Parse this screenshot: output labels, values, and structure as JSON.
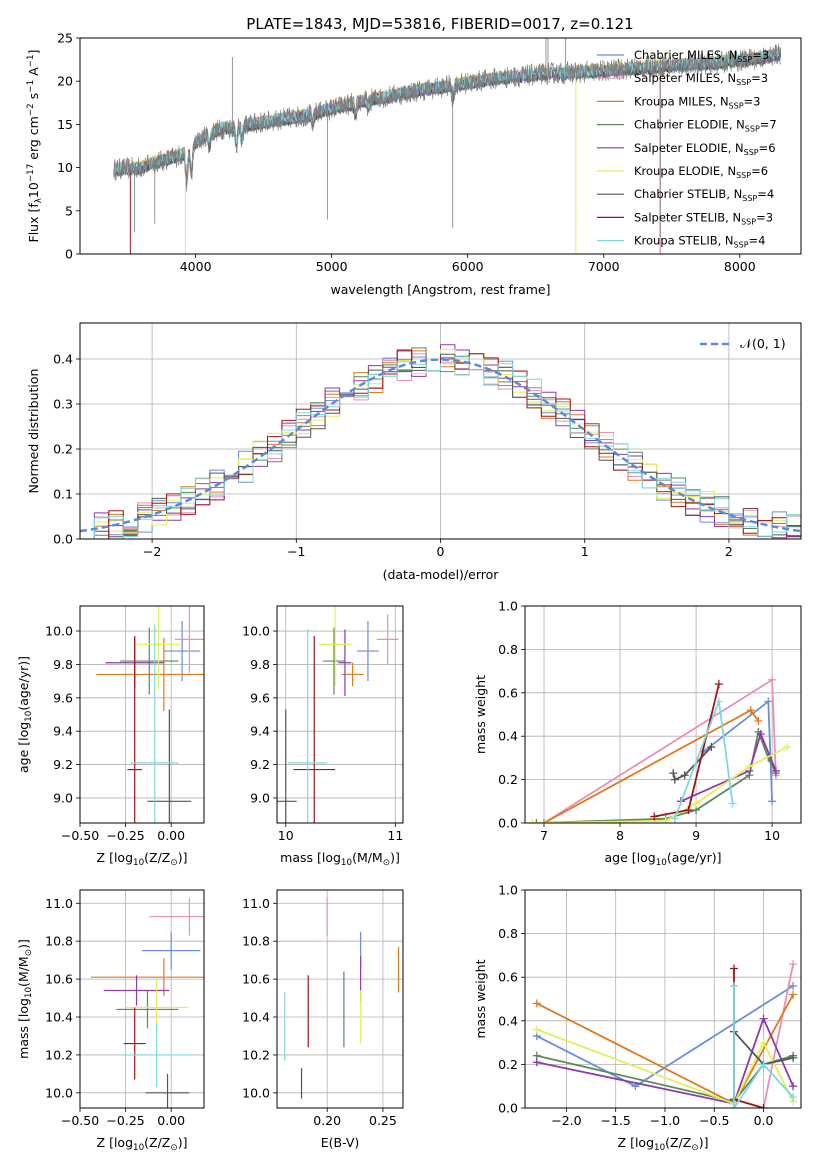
{
  "figure": {
    "title": "PLATE=1843, MJD=53816, FIBERID=0017, z=0.121"
  },
  "models": [
    {
      "label": "Chabrier MILES, N$_{SSP}$=3",
      "label_text": "Chabrier MILES, N",
      "label_sub": "SSP",
      "label_tail": "=3",
      "color": "#6a8fd6"
    },
    {
      "label": "Salpeter MILES, N$_{SSP}$=3",
      "label_text": "Salpeter MILES, N",
      "label_sub": "SSP",
      "label_tail": "=3",
      "color": "#e98fb9"
    },
    {
      "label": "Kroupa MILES, N$_{SSP}$=3",
      "label_text": "Kroupa MILES, N",
      "label_sub": "SSP",
      "label_tail": "=3",
      "color": "#e07a1f"
    },
    {
      "label": "Chabrier ELODIE, N$_{SSP}$=7",
      "label_text": "Chabrier ELODIE, N",
      "label_sub": "SSP",
      "label_tail": "=7",
      "color": "#5a8a5a"
    },
    {
      "label": "Salpeter ELODIE, N$_{SSP}$=6",
      "label_text": "Salpeter ELODIE, N",
      "label_sub": "SSP",
      "label_tail": "=6",
      "color": "#8e3aa8"
    },
    {
      "label": "Kroupa ELODIE, N$_{SSP}$=6",
      "label_text": "Kroupa ELODIE, N",
      "label_sub": "SSP",
      "label_tail": "=6",
      "color": "#e3ee5a"
    },
    {
      "label": "Chabrier STELIB, N$_{SSP}$=4",
      "label_text": "Chabrier STELIB, N",
      "label_sub": "SSP",
      "label_tail": "=4",
      "color": "#555555"
    },
    {
      "label": "Salpeter STELIB, N$_{SSP}$=3",
      "label_text": "Salpeter STELIB, N",
      "label_sub": "SSP",
      "label_tail": "=3",
      "color": "#a01515"
    },
    {
      "label": "Kroupa STELIB, N$_{SSP}$=4",
      "label_text": "Kroupa STELIB, N",
      "label_sub": "SSP",
      "label_tail": "=4",
      "color": "#7fd8e0"
    }
  ],
  "chart_data": [
    {
      "id": "spectrum",
      "type": "line",
      "xlabel": "wavelength [Angstrom, rest frame]",
      "ylabel": "Flux [f$_\\lambda$10$^{-17}$ erg cm$^{-2}$ s$^{-1}$ A$^{-1}$]",
      "ylabel_parts": [
        "Flux [f",
        "λ",
        "10",
        "−17",
        " erg cm",
        "−2",
        " s",
        "−1",
        " A",
        "−1",
        "]"
      ],
      "xlim": [
        3150,
        8450
      ],
      "ylim": [
        0,
        25
      ],
      "xticks": [
        4000,
        5000,
        6000,
        7000,
        8000
      ],
      "yticks": [
        0,
        5,
        10,
        15,
        20,
        25
      ],
      "grid": false,
      "legend": "right",
      "data_color": "#808080",
      "wavelength_range": [
        3400,
        8300
      ],
      "continuum": {
        "x": [
          3400,
          3600,
          3700,
          3800,
          3900,
          4000,
          4100,
          4200,
          4400,
          4600,
          4800,
          5000,
          5200,
          5400,
          5600,
          5800,
          6000,
          6200,
          6400,
          6600,
          6800,
          7000,
          7200,
          7400,
          7600,
          7800,
          8000,
          8200,
          8300
        ],
        "y": [
          9.8,
          10.0,
          10.6,
          11.0,
          11.5,
          12.8,
          14.0,
          14.5,
          15.0,
          15.5,
          16.0,
          16.8,
          17.6,
          18.2,
          18.8,
          19.3,
          19.8,
          20.3,
          20.6,
          20.9,
          21.0,
          21.2,
          21.5,
          21.7,
          21.9,
          22.1,
          22.4,
          22.8,
          23.2
        ]
      },
      "absorption_lines": [
        {
          "x": 3934,
          "depth": 3.5
        },
        {
          "x": 3969,
          "depth": 3.0
        },
        {
          "x": 4102,
          "depth": 1.5
        },
        {
          "x": 4300,
          "depth": 2.0
        },
        {
          "x": 4340,
          "depth": 1.5
        },
        {
          "x": 4861,
          "depth": 1.2
        },
        {
          "x": 5175,
          "depth": 1.5
        },
        {
          "x": 5270,
          "depth": 0.8
        },
        {
          "x": 5890,
          "depth": 1.5
        }
      ],
      "model_features": [
        {
          "model": 7,
          "x": 3520,
          "y_low": 0.0
        },
        {
          "model": 5,
          "x": 3925,
          "y_low": 0.0
        },
        {
          "model": 5,
          "x": 6795,
          "y_low": 0.0
        },
        {
          "model": 2,
          "x": 7415,
          "y_low": 0.0
        },
        {
          "model": 1,
          "x": 7415,
          "y_low": 0.0
        }
      ]
    },
    {
      "id": "residuals",
      "type": "step",
      "xlabel": "(data-model)/error",
      "ylabel": "Normed distribution",
      "xlim": [
        -2.5,
        2.5
      ],
      "ylim": [
        0,
        0.48
      ],
      "xticks": [
        -2,
        -1,
        0,
        1,
        2
      ],
      "xtick_labels": [
        "−2",
        "−1",
        "0",
        "1",
        "2"
      ],
      "yticks": [
        0.0,
        0.1,
        0.2,
        0.3,
        0.4
      ],
      "grid": true,
      "legend": "top-right",
      "legend_label": "$\\mathcal{N}(0,1)$",
      "legend_text": "𝒩(0, 1)",
      "reference_curve": {
        "type": "gaussian",
        "mean": 0,
        "sigma": 1,
        "color": "#5b8bd8"
      },
      "bin_width": 0.1
    },
    {
      "id": "age_vs_Z",
      "type": "scatter",
      "xlabel": "Z [log$_{10}$(Z/Z$_\\odot$)]",
      "xlabel_parts": [
        "Z [log",
        "10",
        "(Z/Z",
        "⊙",
        ")]"
      ],
      "ylabel": "age  [log$_{10}$(age/yr)]",
      "ylabel_parts": [
        "age  [log",
        "10",
        "(age/yr)]"
      ],
      "xlim": [
        -0.5,
        0.18
      ],
      "ylim": [
        8.85,
        10.15
      ],
      "xticks": [
        -0.5,
        -0.25,
        0.0
      ],
      "xtick_labels": [
        "−0.50",
        "−0.25",
        "0.00"
      ],
      "yticks": [
        9.0,
        9.2,
        9.4,
        9.6,
        9.8,
        10.0
      ],
      "grid": true,
      "points": [
        {
          "model": 0,
          "x": 0.06,
          "xerr": 0.1,
          "y": 9.88,
          "yerr": 0.18
        },
        {
          "model": 1,
          "x": 0.1,
          "xerr": 0.08,
          "y": 9.95,
          "yerr": 0.2
        },
        {
          "model": 2,
          "x": -0.04,
          "xerr": 0.37,
          "y": 9.74,
          "yerr": 0.22
        },
        {
          "model": 3,
          "x": -0.12,
          "xerr": 0.16,
          "y": 9.82,
          "yerr": 0.2
        },
        {
          "model": 4,
          "x": -0.2,
          "xerr": 0.16,
          "y": 9.81,
          "yerr": 0.15
        },
        {
          "model": 5,
          "x": -0.07,
          "xerr": 0.12,
          "y": 9.92,
          "yerr": 0.27
        },
        {
          "model": 6,
          "x": -0.01,
          "xerr": 0.12,
          "y": 8.98,
          "yerr": 0.55
        },
        {
          "model": 7,
          "x": -0.2,
          "xerr": 0.04,
          "y": 9.17,
          "yerr": 0.8
        },
        {
          "model": 8,
          "x": -0.09,
          "xerr": 0.13,
          "y": 9.21,
          "yerr": 0.83
        }
      ]
    },
    {
      "id": "age_vs_mass",
      "type": "scatter",
      "xlabel": "mass [log$_{10}$(M/M$_\\odot$)]",
      "xlabel_parts": [
        "mass [log",
        "10",
        "(M/M",
        "⊙",
        ")]"
      ],
      "xlim": [
        9.92,
        11.07
      ],
      "ylim": [
        8.85,
        10.15
      ],
      "xticks": [
        10,
        11
      ],
      "xtick_labels": [
        "10",
        "11"
      ],
      "yticks": [
        9.0,
        9.2,
        9.4,
        9.6,
        9.8,
        10.0
      ],
      "grid": true,
      "points": [
        {
          "model": 0,
          "x": 10.75,
          "xerr": 0.1,
          "y": 9.88,
          "yerr": 0.18
        },
        {
          "model": 1,
          "x": 10.93,
          "xerr": 0.1,
          "y": 9.95,
          "yerr": 0.15
        },
        {
          "model": 2,
          "x": 10.61,
          "xerr": 0.1,
          "y": 9.74,
          "yerr": 0.07
        },
        {
          "model": 3,
          "x": 10.44,
          "xerr": 0.1,
          "y": 9.82,
          "yerr": 0.2
        },
        {
          "model": 4,
          "x": 10.54,
          "xerr": 0.06,
          "y": 9.81,
          "yerr": 0.2
        },
        {
          "model": 5,
          "x": 10.45,
          "xerr": 0.15,
          "y": 9.92,
          "yerr": 0.25
        },
        {
          "model": 6,
          "x": 10.0,
          "xerr": 0.1,
          "y": 8.98,
          "yerr": 0.55
        },
        {
          "model": 7,
          "x": 10.26,
          "xerr": 0.19,
          "y": 9.17,
          "yerr": 0.8
        },
        {
          "model": 8,
          "x": 10.2,
          "xerr": 0.18,
          "y": 9.21,
          "yerr": 0.8
        }
      ]
    },
    {
      "id": "massweight_vs_age",
      "type": "line",
      "xlabel": "age  [log$_{10}$(age/yr)]",
      "xlabel_parts": [
        "age  [log",
        "10",
        "(age/yr)]"
      ],
      "ylabel": "mass weight",
      "xlim": [
        6.75,
        10.38
      ],
      "ylim": [
        0,
        1.0
      ],
      "xticks": [
        7,
        8,
        9,
        10
      ],
      "yticks": [
        0.0,
        0.2,
        0.4,
        0.6,
        0.8,
        1.0
      ],
      "grid": true,
      "series": [
        {
          "model": 0,
          "x": [
            9.1,
            9.95,
            10.0
          ],
          "y": [
            0.33,
            0.56,
            0.1
          ]
        },
        {
          "model": 1,
          "x": [
            7.0,
            10.0,
            10.05
          ],
          "y": [
            0.0,
            0.66,
            0.22
          ]
        },
        {
          "model": 2,
          "x": [
            7.0,
            9.72,
            9.82
          ],
          "y": [
            0.0,
            0.52,
            0.47
          ]
        },
        {
          "model": 3,
          "x": [
            6.9,
            8.6,
            9.0,
            9.7,
            9.82,
            9.95,
            10.05
          ],
          "y": [
            0.0,
            0.02,
            0.06,
            0.22,
            0.42,
            0.3,
            0.23
          ]
        },
        {
          "model": 4,
          "x": [
            8.8,
            9.7,
            9.85,
            10.05
          ],
          "y": [
            0.1,
            0.24,
            0.41,
            0.24
          ]
        },
        {
          "model": 5,
          "x": [
            6.85,
            8.6,
            9.0,
            9.7,
            10.2
          ],
          "y": [
            0.0,
            0.01,
            0.09,
            0.26,
            0.35
          ]
        },
        {
          "model": 6,
          "x": [
            8.7,
            8.72,
            8.85,
            9.2
          ],
          "y": [
            0.23,
            0.2,
            0.22,
            0.35
          ]
        },
        {
          "model": 7,
          "x": [
            8.45,
            8.9,
            9.3
          ],
          "y": [
            0.03,
            0.06,
            0.64
          ]
        },
        {
          "model": 8,
          "x": [
            8.72,
            9.3,
            9.48
          ],
          "y": [
            0.02,
            0.56,
            0.09
          ]
        }
      ]
    },
    {
      "id": "mass_vs_Z",
      "type": "scatter",
      "xlabel": "Z [log$_{10}$(Z/Z$_\\odot$)]",
      "xlabel_parts": [
        "Z [log",
        "10",
        "(Z/Z",
        "⊙",
        ")]"
      ],
      "ylabel": "mass [log$_{10}$(M/M$_\\odot$)]",
      "ylabel_parts": [
        "mass [log",
        "10",
        "(M/M",
        "⊙",
        ")]"
      ],
      "xlim": [
        -0.5,
        0.18
      ],
      "ylim": [
        9.92,
        11.07
      ],
      "xticks": [
        -0.5,
        -0.25,
        0.0
      ],
      "xtick_labels": [
        "−0.50",
        "−0.25",
        "0.00"
      ],
      "yticks": [
        10.0,
        10.2,
        10.4,
        10.6,
        10.8,
        11.0
      ],
      "grid": true,
      "points": [
        {
          "model": 0,
          "x": 0.0,
          "xerr": 0.16,
          "y": 10.75,
          "yerr": 0.1
        },
        {
          "model": 1,
          "x": 0.1,
          "xerr": 0.22,
          "y": 10.93,
          "yerr": 0.1
        },
        {
          "model": 2,
          "x": -0.04,
          "xerr": 0.4,
          "y": 10.61,
          "yerr": 0.1
        },
        {
          "model": 3,
          "x": -0.13,
          "xerr": 0.17,
          "y": 10.44,
          "yerr": 0.1
        },
        {
          "model": 4,
          "x": -0.19,
          "xerr": 0.18,
          "y": 10.54,
          "yerr": 0.08
        },
        {
          "model": 5,
          "x": -0.08,
          "xerr": 0.17,
          "y": 10.45,
          "yerr": 0.15
        },
        {
          "model": 6,
          "x": -0.02,
          "xerr": 0.12,
          "y": 10.0,
          "yerr": 0.1
        },
        {
          "model": 7,
          "x": -0.2,
          "xerr": 0.06,
          "y": 10.26,
          "yerr": 0.19
        },
        {
          "model": 8,
          "x": -0.08,
          "xerr": 0.19,
          "y": 10.2,
          "yerr": 0.17
        }
      ]
    },
    {
      "id": "mass_vs_EBV",
      "type": "scatter",
      "xlabel": "E(B-V)",
      "xlim": [
        0.155,
        0.268
      ],
      "ylim": [
        9.92,
        11.07
      ],
      "xticks": [
        0.2,
        0.25
      ],
      "xtick_labels": [
        "0.20",
        "0.25"
      ],
      "yticks": [
        10.0,
        10.2,
        10.4,
        10.6,
        10.8,
        11.0
      ],
      "grid": true,
      "points": [
        {
          "model": 0,
          "x": 0.23,
          "y": 10.75,
          "yerr": 0.1
        },
        {
          "model": 1,
          "x": 0.2,
          "y": 10.93,
          "yerr": 0.1
        },
        {
          "model": 2,
          "x": 0.264,
          "y": 10.65,
          "yerr": 0.12
        },
        {
          "model": 3,
          "x": 0.215,
          "y": 10.44,
          "yerr": 0.2
        },
        {
          "model": 4,
          "x": 0.23,
          "y": 10.6,
          "yerr": 0.12
        },
        {
          "model": 5,
          "x": 0.23,
          "y": 10.4,
          "yerr": 0.14
        },
        {
          "model": 6,
          "x": 0.177,
          "y": 10.05,
          "yerr": 0.08
        },
        {
          "model": 7,
          "x": 0.183,
          "y": 10.43,
          "yerr": 0.19
        },
        {
          "model": 8,
          "x": 0.162,
          "y": 10.35,
          "yerr": 0.18
        }
      ]
    },
    {
      "id": "massweight_vs_Z",
      "type": "line",
      "xlabel": "Z [log$_{10}$(Z/Z$_\\odot$)]",
      "xlabel_parts": [
        "Z [log",
        "10",
        "(Z/Z",
        "⊙",
        ")]"
      ],
      "ylabel": "mass weight",
      "xlim": [
        -2.42,
        0.38
      ],
      "ylim": [
        0,
        1.0
      ],
      "xticks": [
        -2.0,
        -1.5,
        -1.0,
        -0.5,
        0.0
      ],
      "xtick_labels": [
        "−2.0",
        "−1.5",
        "−1.0",
        "−0.5",
        "0.0"
      ],
      "yticks": [
        0.0,
        0.2,
        0.4,
        0.6,
        0.8,
        1.0
      ],
      "grid": true,
      "series": [
        {
          "model": 0,
          "x": [
            -2.3,
            -1.3,
            0.3
          ],
          "y": [
            0.33,
            0.1,
            0.56
          ]
        },
        {
          "model": 1,
          "x": [
            0.0,
            0.3
          ],
          "y": [
            0.0,
            0.66
          ]
        },
        {
          "model": 2,
          "x": [
            -2.3,
            -0.3,
            0.3
          ],
          "y": [
            0.48,
            0.02,
            0.52
          ]
        },
        {
          "model": 3,
          "x": [
            -2.3,
            -0.3,
            0.0,
            0.3
          ],
          "y": [
            0.24,
            0.03,
            0.2,
            0.24
          ]
        },
        {
          "model": 4,
          "x": [
            -2.3,
            -0.3,
            0.0,
            0.3
          ],
          "y": [
            0.21,
            0.02,
            0.41,
            0.1
          ]
        },
        {
          "model": 5,
          "x": [
            -2.3,
            -0.3,
            0.0,
            0.3
          ],
          "y": [
            0.36,
            0.02,
            0.3,
            0.03
          ]
        },
        {
          "model": 6,
          "x": [
            -0.3,
            0.0,
            0.3
          ],
          "y": [
            0.35,
            0.2,
            0.23
          ]
        },
        {
          "model": 7,
          "x": [
            -0.3,
            -0.3,
            0.0
          ],
          "y": [
            0.64,
            0.04,
            0.0
          ]
        },
        {
          "model": 8,
          "x": [
            -0.3,
            -0.3,
            0.0,
            0.3
          ],
          "y": [
            0.56,
            0.0,
            0.2,
            0.05
          ]
        }
      ]
    }
  ]
}
